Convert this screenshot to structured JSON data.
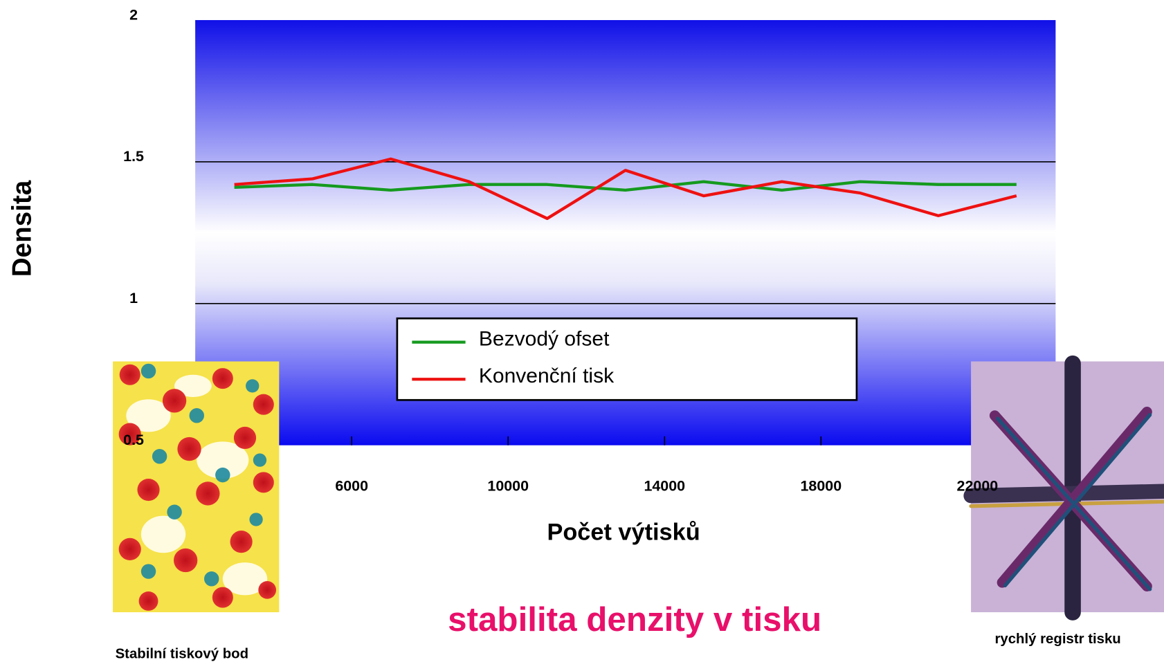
{
  "chart_data": {
    "type": "line",
    "title": "stabilita denzity v tisku",
    "x_label": "Počet výtisků",
    "y_label": "Densita",
    "x": [
      3000,
      5000,
      7000,
      9000,
      11000,
      13000,
      15000,
      17000,
      19000,
      21000,
      23000
    ],
    "series": [
      {
        "name": "Bezvodý ofset",
        "color": "#159a1f",
        "values": [
          1.41,
          1.42,
          1.4,
          1.42,
          1.42,
          1.4,
          1.43,
          1.4,
          1.43,
          1.42,
          1.42
        ]
      },
      {
        "name": "Konvenční tisk",
        "color": "#ee1111",
        "values": [
          1.42,
          1.44,
          1.51,
          1.43,
          1.3,
          1.47,
          1.38,
          1.43,
          1.39,
          1.31,
          1.38
        ]
      }
    ],
    "xlim": [
      2000,
      24000
    ],
    "xticks": [
      6000,
      10000,
      14000,
      18000,
      22000
    ],
    "ylim": [
      0.5,
      2
    ],
    "yticks": [
      0.5,
      1,
      1.5,
      2
    ],
    "grid": true,
    "legend": "bottom",
    "captions": [
      "Stabilní tiskový bod",
      "rychlý registr tisku"
    ]
  }
}
